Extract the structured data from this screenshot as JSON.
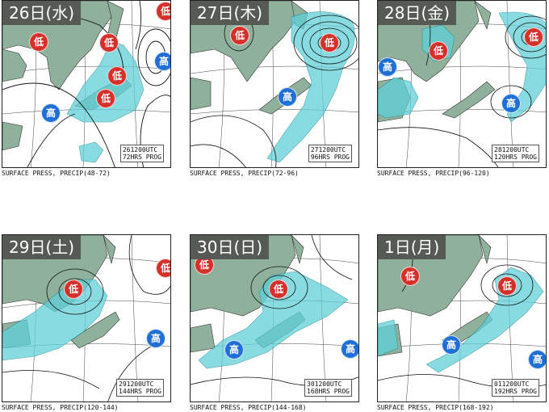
{
  "colors": {
    "land": "#8fb09a",
    "precip": "#5fd0d8",
    "low": "#d6302a",
    "high": "#1f6fd6",
    "label_bg": "#555a55"
  },
  "panels": [
    {
      "date": "26日(水)",
      "stamp1": "261200UTC",
      "stamp2": "72HRS PROG",
      "caption": "SURFACE PRESS, PRECIP(48-72)",
      "markers": [
        {
          "type": "low",
          "label": "低"
        },
        {
          "type": "low",
          "label": "低"
        },
        {
          "type": "low",
          "label": "低"
        },
        {
          "type": "low",
          "label": "低"
        },
        {
          "type": "low",
          "label": "低"
        },
        {
          "type": "high",
          "label": "高"
        },
        {
          "type": "high",
          "label": "高"
        }
      ]
    },
    {
      "date": "27日(木)",
      "stamp1": "271200UTC",
      "stamp2": "96HRS PROG",
      "caption": "SURFACE PRESS, PRECIP(72-96)",
      "markers": [
        {
          "type": "low",
          "label": "低"
        },
        {
          "type": "low",
          "label": "低"
        },
        {
          "type": "high",
          "label": "高"
        }
      ]
    },
    {
      "date": "28日(金)",
      "stamp1": "281200UTC",
      "stamp2": "120HRS PROG",
      "caption": "SURFACE PRESS, PRECIP(96-120)",
      "markers": [
        {
          "type": "low",
          "label": "低"
        },
        {
          "type": "low",
          "label": "低"
        },
        {
          "type": "high",
          "label": "高"
        },
        {
          "type": "high",
          "label": "高"
        }
      ]
    },
    {
      "date": "29日(土)",
      "stamp1": "291200UTC",
      "stamp2": "144HRS PROG",
      "caption": "SURFACE PRESS, PRECIP(120-144)",
      "markers": [
        {
          "type": "low",
          "label": "低"
        },
        {
          "type": "low",
          "label": "低"
        },
        {
          "type": "high",
          "label": "高"
        }
      ]
    },
    {
      "date": "30日(日)",
      "stamp1": "301200UTC",
      "stamp2": "168HRS PROG",
      "caption": "SURFACE PRESS, PRECIP(144-168)",
      "markers": [
        {
          "type": "low",
          "label": "低"
        },
        {
          "type": "low",
          "label": "低"
        },
        {
          "type": "high",
          "label": "高"
        },
        {
          "type": "high",
          "label": "高"
        }
      ]
    },
    {
      "date": "1日(月)",
      "stamp1": "011200UTC",
      "stamp2": "192HRS PROG",
      "caption": "SURFACE PRESS, PRECIP(168-192)",
      "markers": [
        {
          "type": "low",
          "label": "低"
        },
        {
          "type": "low",
          "label": "低"
        },
        {
          "type": "high",
          "label": "高"
        },
        {
          "type": "high",
          "label": "高"
        }
      ]
    }
  ]
}
